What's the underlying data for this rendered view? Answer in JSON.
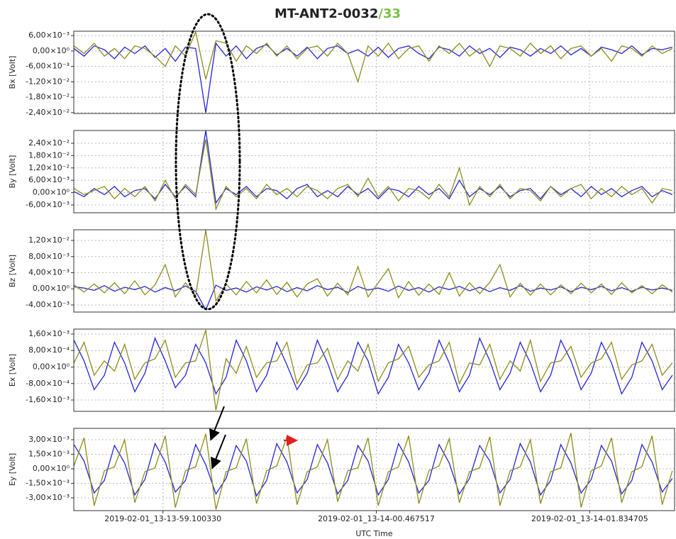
{
  "chart_data": {
    "type": "line",
    "title": "MT-ANT2-0032",
    "title_suffix": "/33",
    "title_suffix_color": "#7ac043",
    "xlabel": "UTC Time",
    "grid": true,
    "xlim": [
      58.5289,
      62.3789
    ],
    "xticks": [
      {
        "value": 59.10033,
        "label": "2019-02-01_13-13-59.100330"
      },
      {
        "value": 60.467517,
        "label": "2019-02-01_13-14-00.467517"
      },
      {
        "value": 61.834705,
        "label": "2019-02-01_13-14-01.834705"
      }
    ],
    "x": [
      58.53,
      58.595,
      58.66,
      58.725,
      58.79,
      58.855,
      58.92,
      58.985,
      59.05,
      59.115,
      59.18,
      59.245,
      59.31,
      59.375,
      59.44,
      59.505,
      59.57,
      59.635,
      59.7,
      59.765,
      59.83,
      59.895,
      59.96,
      60.025,
      60.09,
      60.155,
      60.22,
      60.285,
      60.35,
      60.415,
      60.48,
      60.545,
      60.61,
      60.675,
      60.74,
      60.805,
      60.87,
      60.935,
      61,
      61.065,
      61.13,
      61.195,
      61.26,
      61.325,
      61.39,
      61.455,
      61.52,
      61.585,
      61.65,
      61.715,
      61.78,
      61.845,
      61.91,
      61.975,
      62.04,
      62.105,
      62.17,
      62.235,
      62.3,
      62.365
    ],
    "panels": [
      {
        "ylabel": "Bx [Volt]",
        "ylim": [
          -0.0243,
          0.0077
        ],
        "yticks": [
          {
            "value": 0.006,
            "label": "6,00×10⁻³"
          },
          {
            "value": 0,
            "label": "0,00×10⁰"
          },
          {
            "value": -0.006,
            "label": "-6,00×10⁻³"
          },
          {
            "value": -0.012,
            "label": "-1,20×10⁻²"
          },
          {
            "value": -0.018,
            "label": "-1,80×10⁻²"
          },
          {
            "value": -0.024,
            "label": "-2,40×10⁻²"
          }
        ],
        "series": [
          {
            "color": "#2424dc",
            "values": [
              0.001,
              -0.002,
              0.002,
              0.0005,
              -0.003,
              0.0015,
              -0.001,
              0.002,
              -0.0025,
              0.001,
              -0.004,
              0.0015,
              0.001,
              -0.024,
              0.003,
              -0.002,
              0.002,
              -0.003,
              0.001,
              0.0025,
              -0.0015,
              0.001,
              -0.002,
              0.0015,
              -0.003,
              0.001,
              0.002,
              -0.001,
              0.0005,
              -0.002,
              0.0015,
              -0.0025,
              0.001,
              0.002,
              -0.001,
              -0.003,
              0.0015,
              0.0005,
              -0.002,
              0.002,
              -0.001,
              0.001,
              -0.0025,
              0.0015,
              0.0005,
              -0.002,
              0.001,
              -0.001,
              0.002,
              -0.0015,
              0.001,
              -0.002,
              0.0015,
              0.0005,
              -0.001,
              0.002,
              -0.0015,
              0.001,
              0.0005,
              0.0015
            ]
          },
          {
            "color": "#8c8c1c",
            "values": [
              0.002,
              -0.001,
              0.003,
              -0.002,
              0.001,
              -0.003,
              0.002,
              0.001,
              -0.002,
              -0.006,
              0.002,
              -0.002,
              0.0075,
              -0.011,
              0.004,
              0.003,
              -0.004,
              0.002,
              -0.001,
              0.003,
              -0.002,
              0.002,
              -0.003,
              0.001,
              0.002,
              -0.002,
              0.003,
              -0.001,
              -0.012,
              0.002,
              -0.002,
              0.003,
              -0.003,
              0.001,
              0.002,
              -0.004,
              0.002,
              -0.001,
              0.003,
              -0.002,
              0.001,
              -0.006,
              0.002,
              0.001,
              -0.002,
              0.003,
              -0.001,
              0.002,
              -0.003,
              0.001,
              0.002,
              -0.002,
              0.001,
              -0.004,
              0.002,
              0.001,
              -0.002,
              0.002,
              -0.001,
              0.001
            ]
          }
        ]
      },
      {
        "ylabel": "By [Volt]",
        "ylim": [
          -0.0098,
          0.0302
        ],
        "yticks": [
          {
            "value": 0.024,
            "label": "2,40×10⁻²"
          },
          {
            "value": 0.018,
            "label": "1,80×10⁻²"
          },
          {
            "value": 0.012,
            "label": "1,20×10⁻²"
          },
          {
            "value": 0.006,
            "label": "6,00×10⁻³"
          },
          {
            "value": 0,
            "label": "0,00×10⁰"
          },
          {
            "value": -0.006,
            "label": "-6,00×10⁻³"
          }
        ],
        "series": [
          {
            "color": "#2424dc",
            "values": [
              0.0005,
              -0.002,
              0.002,
              -0.001,
              0.003,
              -0.002,
              0.001,
              0.002,
              -0.003,
              0.004,
              -0.002,
              0.003,
              -0.002,
              0.0302,
              -0.005,
              0.002,
              -0.001,
              0.003,
              -0.002,
              0.002,
              0.001,
              -0.003,
              0.002,
              0.004,
              -0.002,
              0.001,
              -0.002,
              0.003,
              -0.001,
              0.002,
              -0.003,
              0.002,
              0.001,
              -0.002,
              0.003,
              -0.001,
              0.002,
              -0.003,
              0.006,
              -0.002,
              0.002,
              -0.001,
              0.003,
              -0.002,
              0.001,
              0.002,
              -0.003,
              0.003,
              -0.001,
              0.002,
              -0.002,
              0.003,
              -0.001,
              0.002,
              -0.002,
              0.001,
              0.003,
              -0.002,
              0.001,
              -0.001
            ]
          },
          {
            "color": "#8c8c1c",
            "values": [
              0.002,
              -0.001,
              0.001,
              0.003,
              -0.003,
              0.002,
              -0.002,
              0.003,
              -0.004,
              0.006,
              -0.003,
              0.004,
              -0.001,
              0.026,
              -0.008,
              0.003,
              -0.002,
              0.002,
              -0.003,
              0.004,
              -0.001,
              0.002,
              -0.002,
              0.003,
              0.001,
              -0.003,
              0.002,
              0.004,
              -0.002,
              0.007,
              -0.002,
              0.003,
              -0.004,
              0.002,
              0.001,
              -0.003,
              0.004,
              -0.002,
              0.012,
              -0.006,
              0.003,
              -0.002,
              0.004,
              -0.003,
              0.002,
              0.001,
              -0.004,
              0.003,
              -0.002,
              0.002,
              0.004,
              -0.003,
              0.002,
              -0.002,
              0.003,
              -0.001,
              0.002,
              -0.005,
              0.002,
              0.001
            ]
          }
        ]
      },
      {
        "ylabel": "Bz [Volt]",
        "ylim": [
          -0.00576,
          0.01464
        ],
        "yticks": [
          {
            "value": 0.012,
            "label": "1,20×10⁻²"
          },
          {
            "value": 0.008,
            "label": "8,00×10⁻³"
          },
          {
            "value": 0.004,
            "label": "4,00×10⁻³"
          },
          {
            "value": 0,
            "label": "0,00×10⁰"
          },
          {
            "value": -0.004,
            "label": "-4,00×10⁻³"
          }
        ],
        "series": [
          {
            "color": "#2424dc",
            "values": [
              0.0005,
              0.0002,
              -0.0004,
              0.0008,
              -0.0006,
              0.0004,
              -0.0002,
              0.0006,
              -0.0008,
              0.0003,
              -0.0005,
              0.0007,
              -0.0006,
              -0.0052,
              0.0009,
              -0.0004,
              0.0002,
              -0.0008,
              0.0005,
              -0.0003,
              0.0006,
              -0.0007,
              0.0003,
              -0.0005,
              0.0008,
              -0.0002,
              0.0004,
              -0.0009,
              0.0006,
              -0.0003,
              0.0002,
              -0.0006,
              0.0007,
              -0.0004,
              0.0003,
              -0.0008,
              0.0005,
              -0.0002,
              0.0006,
              -0.0005,
              0.0004,
              -0.0007,
              0.0003,
              -0.0004,
              0.0008,
              -0.0006,
              0.0002,
              -0.0003,
              0.0005,
              -0.0007,
              0.0004,
              -0.0002,
              0.0006,
              -0.0005,
              0.0003,
              -0.0006,
              0.0004,
              -0.0003,
              0.0002,
              -0.0004
            ]
          },
          {
            "color": "#8c8c1c",
            "values": [
              0.001,
              -0.0008,
              0.0012,
              -0.001,
              0.0015,
              -0.0012,
              0.002,
              -0.0015,
              0.001,
              0.006,
              -0.002,
              0.0015,
              -0.0018,
              0.0146,
              -0.003,
              0.0012,
              -0.0015,
              0.0018,
              -0.001,
              0.0022,
              -0.0014,
              0.0016,
              -0.002,
              0.0012,
              0.0025,
              -0.0018,
              0.0014,
              -0.0015,
              0.0055,
              -0.002,
              0.0015,
              0.005,
              -0.0022,
              0.0018,
              -0.0016,
              0.0012,
              -0.0014,
              0.004,
              -0.0018,
              0.0015,
              -0.0012,
              0.0016,
              0.006,
              -0.002,
              0.0014,
              -0.0016,
              0.0012,
              -0.0015,
              0.001,
              -0.0012,
              0.0014,
              -0.001,
              0.0012,
              -0.0014,
              0.0015,
              -0.001,
              0.0008,
              -0.0012,
              0.001,
              -0.0008
            ]
          }
        ]
      },
      {
        "ylabel": "Ex [Volt]",
        "ylim": [
          -0.00215,
          0.00184
        ],
        "yticks": [
          {
            "value": 0.0016,
            "label": "1,60×10⁻³"
          },
          {
            "value": 0.0008,
            "label": "8,00×10⁻⁴"
          },
          {
            "value": 0,
            "label": "0,00×10⁰"
          },
          {
            "value": -0.0008,
            "label": "-8,00×10⁻⁴"
          },
          {
            "value": -0.0016,
            "label": "-1,60×10⁻³"
          }
        ],
        "series": [
          {
            "color": "#2424dc",
            "values": [
              0.0013,
              0.0003,
              -0.0011,
              -0.0004,
              0.0012,
              0.0002,
              -0.0012,
              -0.0003,
              0.0014,
              0.0003,
              -0.001,
              -0.0004,
              0.0011,
              0.0002,
              -0.0013,
              -0.0005,
              0.0013,
              0.0003,
              -0.0012,
              -0.0004,
              0.0012,
              0.0001,
              -0.0011,
              -0.0003,
              0.0013,
              0.0002,
              -0.0012,
              -0.0004,
              0.0012,
              0.0003,
              -0.0013,
              -0.0005,
              0.0011,
              0.0002,
              -0.0011,
              -0.0003,
              0.0013,
              0.0002,
              -0.0012,
              -0.0004,
              0.0014,
              0.0003,
              -0.0011,
              -0.0003,
              0.0012,
              0.0002,
              -0.0012,
              -0.0004,
              0.0013,
              0.0003,
              -0.0011,
              -0.0003,
              0.0012,
              0.0002,
              -0.0013,
              -0.0005,
              0.0012,
              0.0003,
              -0.0011,
              -0.0004
            ]
          },
          {
            "color": "#8c8c1c",
            "values": [
              0.0002,
              0.0012,
              -0.0004,
              0.0003,
              -0.0002,
              0.0011,
              -0.0006,
              0.0002,
              0.0004,
              0.0013,
              -0.0005,
              0.0002,
              0.0003,
              0.0018,
              -0.0021,
              0.0004,
              -0.0003,
              0.001,
              -0.0005,
              0.0002,
              0.0003,
              0.0012,
              -0.0008,
              0.0001,
              0.0002,
              0.0009,
              -0.0006,
              0.0003,
              -0.0002,
              0.0011,
              -0.0007,
              0.0002,
              0.0004,
              0.001,
              -0.0005,
              0.0001,
              0.0003,
              0.0012,
              -0.0008,
              0.0002,
              0.0001,
              0.0011,
              -0.0006,
              0.0003,
              -0.0002,
              0.0013,
              -0.0007,
              0.0002,
              0.0003,
              0.001,
              -0.0005,
              0.0002,
              0.0004,
              0.0012,
              -0.0006,
              0.0001,
              0.0003,
              0.0011,
              -0.0004,
              0.0002
            ]
          }
        ]
      },
      {
        "ylabel": "Ey [Volt]",
        "ylim": [
          -0.00432,
          0.00417
        ],
        "yticks": [
          {
            "value": 0.003,
            "label": "3,00×10⁻³"
          },
          {
            "value": 0.0015,
            "label": "1,50×10⁻³"
          },
          {
            "value": 0,
            "label": "0,00×10⁰"
          },
          {
            "value": -0.0015,
            "label": "-1,50×10⁻³"
          },
          {
            "value": -0.003,
            "label": "-3,00×10⁻³"
          }
        ],
        "series": [
          {
            "color": "#2424dc",
            "values": [
              0.0025,
              0.0008,
              -0.0025,
              -0.0012,
              0.0024,
              0.0006,
              -0.0027,
              -0.0011,
              0.0026,
              0.0007,
              -0.0024,
              -0.0012,
              0.0025,
              0.0004,
              -0.0026,
              -0.001,
              0.0024,
              0.0008,
              -0.0028,
              -0.0012,
              0.0026,
              0.0007,
              -0.0025,
              -0.0011,
              0.0025,
              0.0006,
              -0.0026,
              -0.0012,
              0.0024,
              0.0008,
              -0.0027,
              -0.0011,
              0.0026,
              0.0007,
              -0.0025,
              -0.0012,
              0.0025,
              0.0006,
              -0.0026,
              -0.001,
              0.0024,
              0.0008,
              -0.0025,
              -0.0011,
              0.0026,
              0.0007,
              -0.0027,
              -0.0012,
              0.0025,
              0.0006,
              -0.0025,
              -0.0011,
              0.0024,
              0.0008,
              -0.0026,
              -0.0012,
              0.0025,
              0.0007,
              -0.0024,
              -0.001
            ]
          },
          {
            "color": "#8c8c1c",
            "values": [
              0.0003,
              0.0032,
              -0.0038,
              -0.0002,
              0.0002,
              0.003,
              -0.0035,
              -0.0003,
              0.0001,
              0.0034,
              -0.004,
              -0.0002,
              0.0002,
              0.0036,
              -0.0042,
              -0.0003,
              0.0001,
              0.0031,
              -0.0036,
              -0.0002,
              0.0003,
              0.0033,
              -0.0037,
              -0.0003,
              0.0002,
              0.003,
              -0.0034,
              -0.0002,
              0.0001,
              0.0032,
              -0.0038,
              -0.0003,
              0.0002,
              0.0034,
              -0.0036,
              -0.0002,
              0.0003,
              0.0031,
              -0.0035,
              -0.0003,
              0.0001,
              0.0033,
              -0.0038,
              -0.0002,
              0.0002,
              0.003,
              -0.0036,
              -0.0003,
              0.0001,
              0.0037,
              -0.004,
              -0.0002,
              0.0003,
              0.0032,
              -0.0035,
              -0.0003,
              0.0002,
              0.0034,
              -0.0037,
              -0.0002
            ]
          }
        ]
      }
    ]
  }
}
